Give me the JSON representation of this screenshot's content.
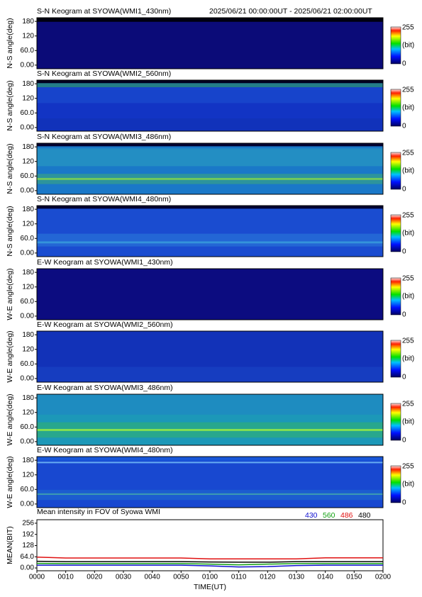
{
  "header": {
    "period": "2025/06/21 00:00:00UT - 2025/06/21 02:00:00UT"
  },
  "keograms": [
    {
      "title": "S-N Keogram at SYOWA(WMI1_430nm)",
      "ylabel": "N-S angle(deg)"
    },
    {
      "title": "S-N Keogram at SYOWA(WMI2_560nm)",
      "ylabel": "N-S angle(deg)"
    },
    {
      "title": "S-N Keogram at SYOWA(WMI3_486nm)",
      "ylabel": "N-S angle(deg)"
    },
    {
      "title": "S-N Keogram at SYOWA(WMI4_480nm)",
      "ylabel": "N-S angle(deg)"
    },
    {
      "title": "E-W Keogram at SYOWA(WMI1_430nm)",
      "ylabel": "W-E angle(deg)"
    },
    {
      "title": "E-W Keogram at SYOWA(WMI2_560nm)",
      "ylabel": "W-E angle(deg)"
    },
    {
      "title": "E-W Keogram at SYOWA(WMI3_486nm)",
      "ylabel": "W-E angle(deg)"
    },
    {
      "title": "E-W Keogram at SYOWA(WMI4_480nm)",
      "ylabel": "W-E angle(deg)"
    }
  ],
  "keogram_axis": {
    "ylim": [
      -15,
      195
    ],
    "yticks": [
      180,
      120,
      {
        "value": 60,
        "label": "60.0"
      },
      {
        "value": 0,
        "label": "0.00"
      }
    ]
  },
  "colorbar": {
    "max": 255,
    "unit": "(bit)",
    "min": 0
  },
  "chart_data": {
    "type": "line",
    "title": "Mean intensity in FOV of Syowa WMI",
    "xlabel": "TIME(UT)",
    "ylabel": "MEAN(BIT)",
    "x": [
      0,
      10,
      20,
      30,
      40,
      50,
      60,
      70,
      80,
      90,
      100,
      110,
      120
    ],
    "xlim": [
      0,
      120
    ],
    "xticks": [
      {
        "value": 0,
        "label": "0000"
      },
      {
        "value": 10,
        "label": "0010"
      },
      {
        "value": 20,
        "label": "0020"
      },
      {
        "value": 30,
        "label": "0030"
      },
      {
        "value": 40,
        "label": "0040"
      },
      {
        "value": 50,
        "label": "0050"
      },
      {
        "value": 60,
        "label": "0100"
      },
      {
        "value": 70,
        "label": "0110"
      },
      {
        "value": 80,
        "label": "0120"
      },
      {
        "value": 90,
        "label": "0130"
      },
      {
        "value": 100,
        "label": "0140"
      },
      {
        "value": 110,
        "label": "0150"
      },
      {
        "value": 120,
        "label": "0200"
      }
    ],
    "ylim": [
      -16,
      276
    ],
    "yticks": [
      256,
      192,
      128,
      {
        "value": 64,
        "label": "64.0"
      },
      {
        "value": 0,
        "label": "0.00"
      }
    ],
    "series": [
      {
        "name": "430",
        "color": "#1010d0",
        "values": [
          16,
          16,
          16,
          16,
          16,
          16,
          12,
          6,
          8,
          14,
          16,
          16,
          16
        ]
      },
      {
        "name": "560",
        "color": "#10a010",
        "values": [
          26,
          25,
          25,
          25,
          25,
          25,
          22,
          18,
          22,
          25,
          25,
          25,
          25
        ]
      },
      {
        "name": "486",
        "color": "#e01010",
        "values": [
          62,
          57,
          57,
          57,
          57,
          57,
          52,
          52,
          52,
          52,
          58,
          58,
          58
        ]
      },
      {
        "name": "480",
        "color": "#000000",
        "values": [
          38,
          36,
          36,
          36,
          36,
          36,
          34,
          33,
          33,
          36,
          36,
          36,
          36
        ]
      }
    ]
  }
}
